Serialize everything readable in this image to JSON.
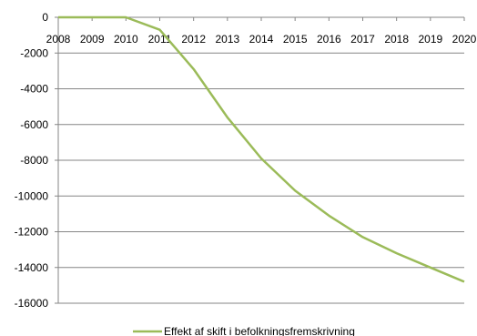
{
  "chart_data": {
    "type": "line",
    "title": "",
    "xlabel": "",
    "ylabel": "",
    "x": [
      "2008",
      "2009",
      "2010",
      "2011",
      "2012",
      "2013",
      "2014",
      "2015",
      "2016",
      "2017",
      "2018",
      "2019",
      "2020"
    ],
    "series": [
      {
        "name": "Effekt af skift i befolkningsfremskrivning",
        "color": "#9bbb59",
        "values": [
          0,
          0,
          0,
          -700,
          -2900,
          -5600,
          -7900,
          -9700,
          -11100,
          -12300,
          -13200,
          -14000,
          -14800
        ]
      }
    ],
    "ylim": [
      -16000,
      0
    ],
    "yticks": [
      0,
      -2000,
      -4000,
      -6000,
      -8000,
      -10000,
      -12000,
      -14000,
      -16000
    ],
    "ytick_labels": [
      "0",
      "-2000",
      "-4000",
      "-6000",
      "-8000",
      "-10000",
      "-12000",
      "-14000",
      "-16000"
    ],
    "grid": true,
    "gridline_color": "#868686",
    "axis_color": "#868686",
    "legend_position": "bottom"
  }
}
